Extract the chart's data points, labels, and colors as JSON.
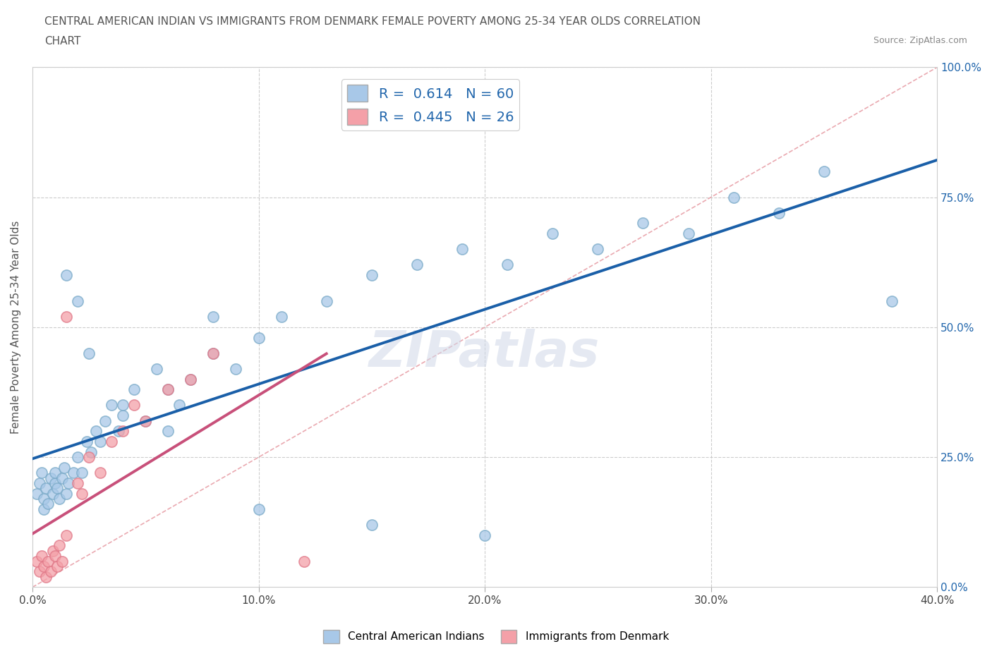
{
  "title_line1": "CENTRAL AMERICAN INDIAN VS IMMIGRANTS FROM DENMARK FEMALE POVERTY AMONG 25-34 YEAR OLDS CORRELATION",
  "title_line2": "CHART",
  "source_text": "Source: ZipAtlas.com",
  "ylabel": "Female Poverty Among 25-34 Year Olds",
  "xlim": [
    0.0,
    0.4
  ],
  "ylim": [
    0.0,
    1.0
  ],
  "xtick_labels": [
    "0.0%",
    "10.0%",
    "20.0%",
    "30.0%",
    "40.0%"
  ],
  "xtick_vals": [
    0.0,
    0.1,
    0.2,
    0.3,
    0.4
  ],
  "ytick_labels": [
    "0.0%",
    "25.0%",
    "50.0%",
    "75.0%",
    "100.0%"
  ],
  "ytick_vals": [
    0.0,
    0.25,
    0.5,
    0.75,
    1.0
  ],
  "blue_R": 0.614,
  "blue_N": 60,
  "pink_R": 0.445,
  "pink_N": 26,
  "blue_color": "#a8c8e8",
  "pink_color": "#f4a0a8",
  "blue_edge_color": "#7aaac8",
  "pink_edge_color": "#e07888",
  "blue_line_color": "#1a5fa8",
  "pink_line_color": "#c8507a",
  "diag_color": "#e8a0a8",
  "watermark": "ZIPatlas",
  "legend_label_blue": "Central American Indians",
  "legend_label_pink": "Immigrants from Denmark",
  "blue_x": [
    0.002,
    0.003,
    0.004,
    0.005,
    0.005,
    0.006,
    0.007,
    0.008,
    0.009,
    0.01,
    0.01,
    0.011,
    0.012,
    0.013,
    0.014,
    0.015,
    0.016,
    0.018,
    0.02,
    0.022,
    0.024,
    0.026,
    0.028,
    0.03,
    0.032,
    0.035,
    0.038,
    0.04,
    0.045,
    0.05,
    0.055,
    0.06,
    0.065,
    0.07,
    0.08,
    0.09,
    0.1,
    0.11,
    0.13,
    0.15,
    0.17,
    0.19,
    0.21,
    0.23,
    0.25,
    0.27,
    0.29,
    0.31,
    0.33,
    0.35,
    0.015,
    0.02,
    0.025,
    0.04,
    0.06,
    0.08,
    0.1,
    0.15,
    0.2,
    0.38
  ],
  "blue_y": [
    0.18,
    0.2,
    0.22,
    0.15,
    0.17,
    0.19,
    0.16,
    0.21,
    0.18,
    0.2,
    0.22,
    0.19,
    0.17,
    0.21,
    0.23,
    0.18,
    0.2,
    0.22,
    0.25,
    0.22,
    0.28,
    0.26,
    0.3,
    0.28,
    0.32,
    0.35,
    0.3,
    0.33,
    0.38,
    0.32,
    0.42,
    0.38,
    0.35,
    0.4,
    0.45,
    0.42,
    0.48,
    0.52,
    0.55,
    0.6,
    0.62,
    0.65,
    0.62,
    0.68,
    0.65,
    0.7,
    0.68,
    0.75,
    0.72,
    0.8,
    0.6,
    0.55,
    0.45,
    0.35,
    0.3,
    0.52,
    0.15,
    0.12,
    0.1,
    0.55
  ],
  "pink_x": [
    0.002,
    0.003,
    0.004,
    0.005,
    0.006,
    0.007,
    0.008,
    0.009,
    0.01,
    0.011,
    0.012,
    0.013,
    0.015,
    0.015,
    0.02,
    0.022,
    0.025,
    0.03,
    0.035,
    0.04,
    0.045,
    0.05,
    0.06,
    0.07,
    0.08,
    0.12
  ],
  "pink_y": [
    0.05,
    0.03,
    0.06,
    0.04,
    0.02,
    0.05,
    0.03,
    0.07,
    0.06,
    0.04,
    0.08,
    0.05,
    0.1,
    0.52,
    0.2,
    0.18,
    0.25,
    0.22,
    0.28,
    0.3,
    0.35,
    0.32,
    0.38,
    0.4,
    0.45,
    0.05
  ]
}
